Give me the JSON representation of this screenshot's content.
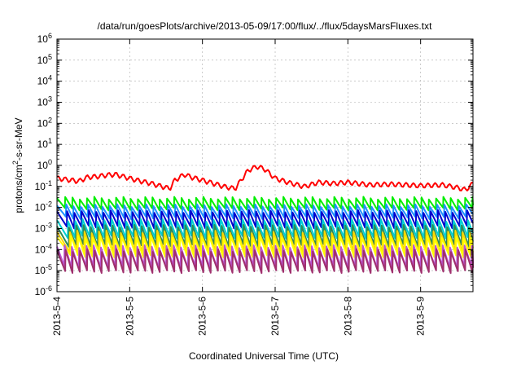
{
  "chart_data": {
    "type": "line",
    "title": "/data/run/goesPlots/archive/2013-05-09/17:00/flux/../flux/5daysMarsFluxes.txt",
    "xlabel": "Coordinated Universal Time (UTC)",
    "ylabel": {
      "prefix": "protons/cm",
      "sup": "2",
      "suffix": "-s-sr-MeV"
    },
    "yscale": "log",
    "ylim_exp": [
      -6,
      6
    ],
    "ytick_exponents": [
      -6,
      -5,
      -4,
      -3,
      -2,
      -1,
      0,
      1,
      2,
      3,
      4,
      5,
      6
    ],
    "ytick_base": "10",
    "xlim_days": [
      4.0,
      9.72
    ],
    "xticks": [
      {
        "day": 4,
        "label": "2013-5-4"
      },
      {
        "day": 5,
        "label": "2013-5-5"
      },
      {
        "day": 6,
        "label": "2013-5-6"
      },
      {
        "day": 7,
        "label": "2013-5-7"
      },
      {
        "day": 8,
        "label": "2013-5-8"
      },
      {
        "day": 9,
        "label": "2013-5-9"
      }
    ],
    "grid": true,
    "sawtooth_period_days": 0.1,
    "series": [
      {
        "color": "#ff0000",
        "kind": "red",
        "top": 0.22,
        "bottom": 0.14
      },
      {
        "color": "#00ee00",
        "kind": "saw",
        "top": 0.028,
        "bottom": 0.0085
      },
      {
        "color": "#1e90ff",
        "kind": "saw",
        "top": 0.0125,
        "bottom": 0.0032
      },
      {
        "color": "#0000cd",
        "kind": "saw",
        "top": 0.0065,
        "bottom": 0.0012
      },
      {
        "color": "#00ced1",
        "kind": "saw",
        "top": 0.0025,
        "bottom": 0.0004
      },
      {
        "color": "#2e8b57",
        "kind": "saw",
        "top": 0.0013,
        "bottom": 0.00016
      },
      {
        "color": "#ffd700",
        "kind": "saw",
        "top": 0.0007,
        "bottom": 8e-05
      },
      {
        "color": "#ffff00",
        "kind": "saw",
        "top": 0.0004,
        "bottom": 5e-05
      },
      {
        "color": "#ba55d3",
        "kind": "saw",
        "top": 0.00014,
        "bottom": 1.5e-05
      },
      {
        "color": "#a0306e",
        "kind": "saw",
        "top": 9e-05,
        "bottom": 9e-06
      }
    ],
    "red_anchor_days": [
      4.0,
      4.3,
      4.42,
      4.55,
      4.68,
      4.8,
      5.1,
      5.3,
      5.45,
      5.55,
      5.62,
      5.75,
      5.85,
      6.1,
      6.3,
      6.45,
      6.55,
      6.63,
      6.75,
      6.85,
      7.0,
      7.2,
      7.4,
      7.6,
      7.8,
      8.0,
      8.3,
      8.6,
      9.0,
      9.3,
      9.5,
      9.62,
      9.72
    ],
    "red_anchor_values": [
      0.25,
      0.18,
      0.28,
      0.3,
      0.35,
      0.38,
      0.2,
      0.14,
      0.1,
      0.08,
      0.2,
      0.38,
      0.28,
      0.16,
      0.1,
      0.08,
      0.25,
      0.6,
      0.9,
      0.7,
      0.25,
      0.15,
      0.1,
      0.16,
      0.14,
      0.16,
      0.12,
      0.13,
      0.11,
      0.12,
      0.09,
      0.07,
      0.14
    ]
  }
}
